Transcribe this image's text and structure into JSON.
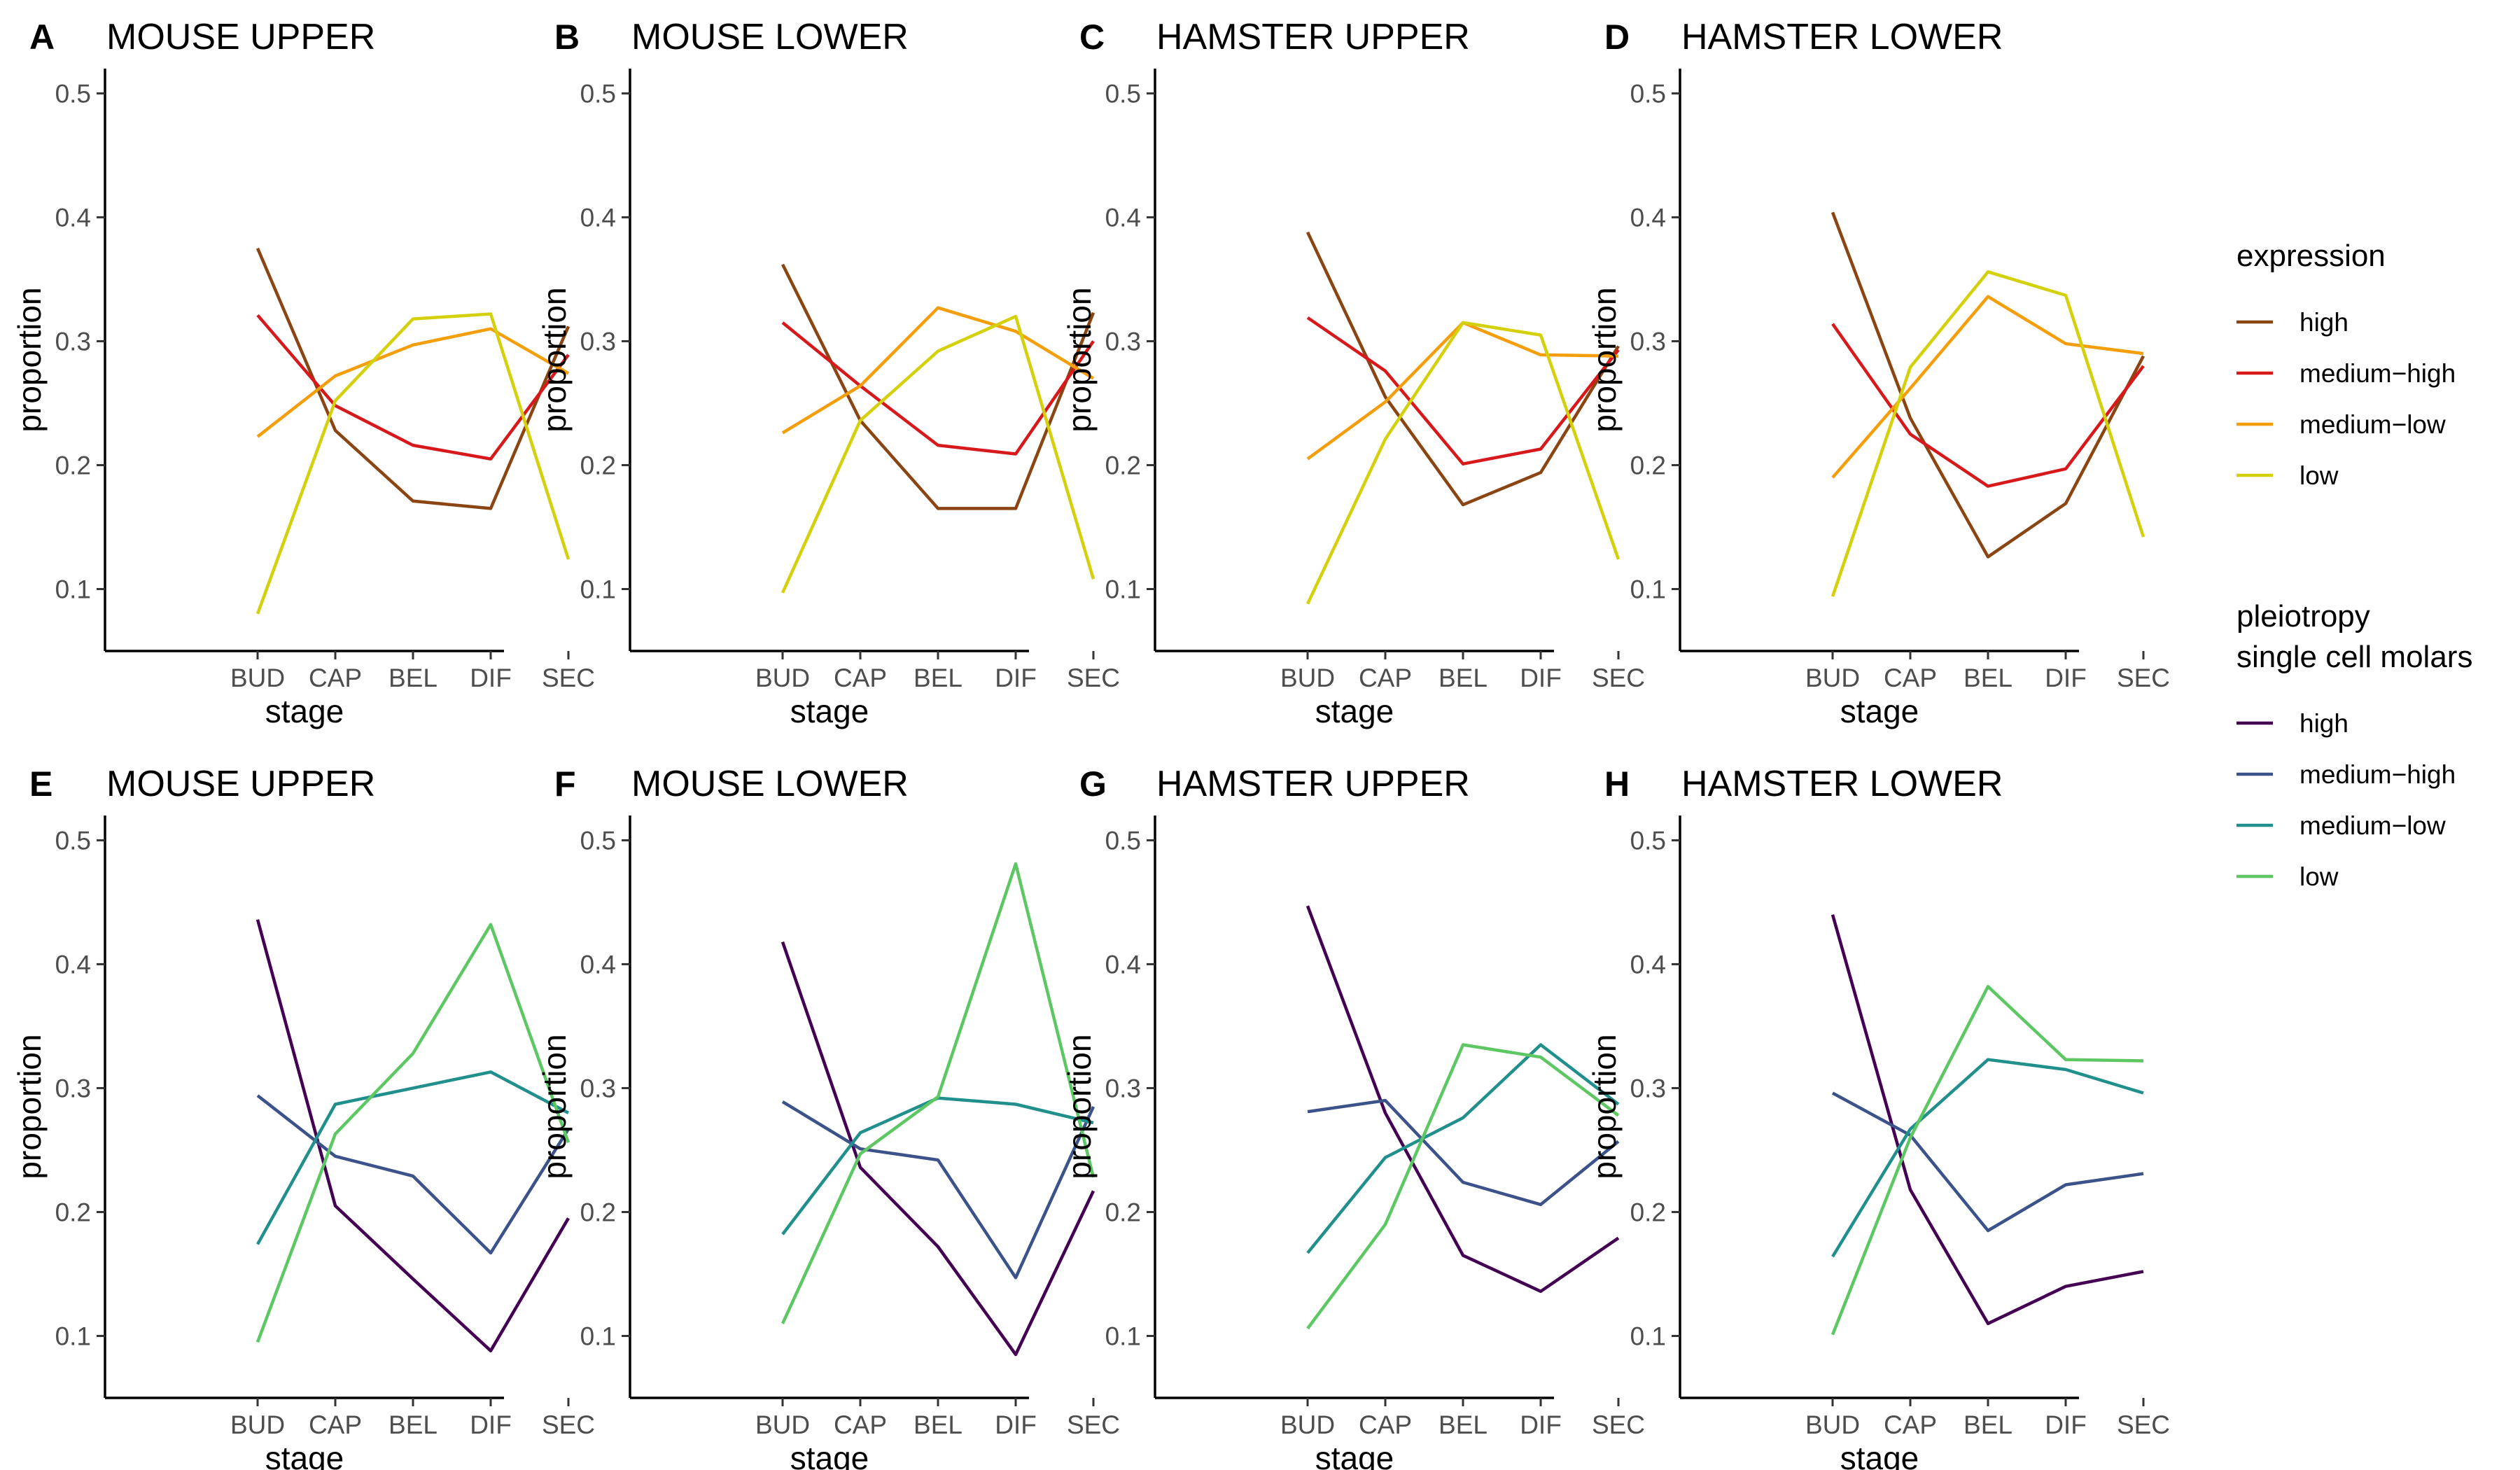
{
  "chart_data": [
    {
      "panel": "A",
      "title": "MOUSE UPPER",
      "type": "line",
      "xlabel": "stage",
      "ylabel": "proportion",
      "categories": [
        "BUD",
        "CAP",
        "BEL",
        "DIF",
        "SEC"
      ],
      "yticks": [
        "0.1",
        "0.2",
        "0.3",
        "0.4",
        "0.5"
      ],
      "ylim": [
        0.05,
        0.52
      ],
      "legend_group": "expression",
      "series": [
        {
          "name": "high",
          "color": "#8B4513",
          "values": [
            0.375,
            0.228,
            0.171,
            0.165,
            0.312
          ]
        },
        {
          "name": "medium−high",
          "color": "#D7191C",
          "values": [
            0.321,
            0.248,
            0.216,
            0.205,
            0.289
          ]
        },
        {
          "name": "medium−low",
          "color": "#F59E0B",
          "values": [
            0.223,
            0.272,
            0.297,
            0.31,
            0.274
          ]
        },
        {
          "name": "low",
          "color": "#D4D10C",
          "values": [
            0.08,
            0.252,
            0.318,
            0.322,
            0.124
          ]
        }
      ]
    },
    {
      "panel": "B",
      "title": "MOUSE LOWER",
      "type": "line",
      "xlabel": "stage",
      "ylabel": "proportion",
      "categories": [
        "BUD",
        "CAP",
        "BEL",
        "DIF",
        "SEC"
      ],
      "yticks": [
        "0.1",
        "0.2",
        "0.3",
        "0.4",
        "0.5"
      ],
      "ylim": [
        0.05,
        0.52
      ],
      "legend_group": "expression",
      "series": [
        {
          "name": "high",
          "color": "#8B4513",
          "values": [
            0.362,
            0.236,
            0.165,
            0.165,
            0.323
          ]
        },
        {
          "name": "medium−high",
          "color": "#D7191C",
          "values": [
            0.315,
            0.264,
            0.216,
            0.209,
            0.3
          ]
        },
        {
          "name": "medium−low",
          "color": "#F59E0B",
          "values": [
            0.226,
            0.264,
            0.327,
            0.308,
            0.27
          ]
        },
        {
          "name": "low",
          "color": "#D4D10C",
          "values": [
            0.097,
            0.236,
            0.292,
            0.32,
            0.108
          ]
        }
      ]
    },
    {
      "panel": "C",
      "title": "HAMSTER UPPER",
      "type": "line",
      "xlabel": "stage",
      "ylabel": "proportion",
      "categories": [
        "BUD",
        "CAP",
        "BEL",
        "DIF",
        "SEC"
      ],
      "yticks": [
        "0.1",
        "0.2",
        "0.3",
        "0.4",
        "0.5"
      ],
      "ylim": [
        0.05,
        0.52
      ],
      "legend_group": "expression",
      "series": [
        {
          "name": "high",
          "color": "#8B4513",
          "values": [
            0.388,
            0.255,
            0.168,
            0.194,
            0.296
          ]
        },
        {
          "name": "medium−high",
          "color": "#D7191C",
          "values": [
            0.319,
            0.276,
            0.201,
            0.213,
            0.293
          ]
        },
        {
          "name": "medium−low",
          "color": "#F59E0B",
          "values": [
            0.205,
            0.251,
            0.315,
            0.289,
            0.288
          ]
        },
        {
          "name": "low",
          "color": "#D4D10C",
          "values": [
            0.088,
            0.221,
            0.315,
            0.305,
            0.124
          ]
        }
      ]
    },
    {
      "panel": "D",
      "title": "HAMSTER LOWER",
      "type": "line",
      "xlabel": "stage",
      "ylabel": "proportion",
      "categories": [
        "BUD",
        "CAP",
        "BEL",
        "DIF",
        "SEC"
      ],
      "yticks": [
        "0.1",
        "0.2",
        "0.3",
        "0.4",
        "0.5"
      ],
      "ylim": [
        0.05,
        0.52
      ],
      "legend_group": "expression",
      "series": [
        {
          "name": "high",
          "color": "#8B4513",
          "values": [
            0.404,
            0.238,
            0.126,
            0.169,
            0.288
          ]
        },
        {
          "name": "medium−high",
          "color": "#D7191C",
          "values": [
            0.314,
            0.225,
            0.183,
            0.197,
            0.28
          ]
        },
        {
          "name": "medium−low",
          "color": "#F59E0B",
          "values": [
            0.19,
            0.262,
            0.336,
            0.298,
            0.29
          ]
        },
        {
          "name": "low",
          "color": "#D4D10C",
          "values": [
            0.094,
            0.279,
            0.356,
            0.337,
            0.142
          ]
        }
      ]
    },
    {
      "panel": "E",
      "title": "MOUSE UPPER",
      "type": "line",
      "xlabel": "stage",
      "ylabel": "proportion",
      "categories": [
        "BUD",
        "CAP",
        "BEL",
        "DIF",
        "SEC"
      ],
      "yticks": [
        "0.1",
        "0.2",
        "0.3",
        "0.4",
        "0.5"
      ],
      "ylim": [
        0.05,
        0.52
      ],
      "legend_group": "pleiotropy",
      "series": [
        {
          "name": "high",
          "color": "#440154",
          "values": [
            0.436,
            0.205,
            0.146,
            0.088,
            0.195
          ]
        },
        {
          "name": "medium−high",
          "color": "#3B528B",
          "values": [
            0.294,
            0.245,
            0.229,
            0.167,
            0.267
          ]
        },
        {
          "name": "medium−low",
          "color": "#21908C",
          "values": [
            0.174,
            0.287,
            0.3,
            0.313,
            0.28
          ]
        },
        {
          "name": "low",
          "color": "#5DC863",
          "values": [
            0.095,
            0.263,
            0.328,
            0.432,
            0.256
          ]
        }
      ]
    },
    {
      "panel": "F",
      "title": "MOUSE LOWER",
      "type": "line",
      "xlabel": "stage",
      "ylabel": "proportion",
      "categories": [
        "BUD",
        "CAP",
        "BEL",
        "DIF",
        "SEC"
      ],
      "yticks": [
        "0.1",
        "0.2",
        "0.3",
        "0.4",
        "0.5"
      ],
      "ylim": [
        0.05,
        0.52
      ],
      "legend_group": "pleiotropy",
      "series": [
        {
          "name": "high",
          "color": "#440154",
          "values": [
            0.418,
            0.236,
            0.172,
            0.085,
            0.217
          ]
        },
        {
          "name": "medium−high",
          "color": "#3B528B",
          "values": [
            0.289,
            0.251,
            0.242,
            0.147,
            0.285
          ]
        },
        {
          "name": "medium−low",
          "color": "#21908C",
          "values": [
            0.182,
            0.264,
            0.292,
            0.287,
            0.272
          ]
        },
        {
          "name": "low",
          "color": "#5DC863",
          "values": [
            0.11,
            0.247,
            0.293,
            0.481,
            0.228
          ]
        }
      ]
    },
    {
      "panel": "G",
      "title": "HAMSTER UPPER",
      "type": "line",
      "xlabel": "stage",
      "ylabel": "proportion",
      "categories": [
        "BUD",
        "CAP",
        "BEL",
        "DIF",
        "SEC"
      ],
      "yticks": [
        "0.1",
        "0.2",
        "0.3",
        "0.4",
        "0.5"
      ],
      "ylim": [
        0.05,
        0.52
      ],
      "legend_group": "pleiotropy",
      "series": [
        {
          "name": "high",
          "color": "#440154",
          "values": [
            0.447,
            0.28,
            0.165,
            0.136,
            0.179
          ]
        },
        {
          "name": "medium−high",
          "color": "#3B528B",
          "values": [
            0.281,
            0.29,
            0.224,
            0.206,
            0.257
          ]
        },
        {
          "name": "medium−low",
          "color": "#21908C",
          "values": [
            0.167,
            0.244,
            0.276,
            0.335,
            0.287
          ]
        },
        {
          "name": "low",
          "color": "#5DC863",
          "values": [
            0.106,
            0.19,
            0.335,
            0.325,
            0.278
          ]
        }
      ]
    },
    {
      "panel": "H",
      "title": "HAMSTER LOWER",
      "type": "line",
      "xlabel": "stage",
      "ylabel": "proportion",
      "categories": [
        "BUD",
        "CAP",
        "BEL",
        "DIF",
        "SEC"
      ],
      "yticks": [
        "0.1",
        "0.2",
        "0.3",
        "0.4",
        "0.5"
      ],
      "ylim": [
        0.05,
        0.52
      ],
      "legend_group": "pleiotropy",
      "series": [
        {
          "name": "high",
          "color": "#440154",
          "values": [
            0.44,
            0.218,
            0.11,
            0.14,
            0.152
          ]
        },
        {
          "name": "medium−high",
          "color": "#3B528B",
          "values": [
            0.296,
            0.262,
            0.185,
            0.222,
            0.231
          ]
        },
        {
          "name": "medium−low",
          "color": "#21908C",
          "values": [
            0.164,
            0.267,
            0.323,
            0.315,
            0.296
          ]
        },
        {
          "name": "low",
          "color": "#5DC863",
          "values": [
            0.101,
            0.26,
            0.382,
            0.323,
            0.322
          ]
        }
      ]
    }
  ],
  "legends": [
    {
      "id": "expression",
      "title_lines": [
        "expression"
      ],
      "items": [
        {
          "label": "high",
          "color": "#8B4513"
        },
        {
          "label": "medium−high",
          "color": "#D7191C"
        },
        {
          "label": "medium−low",
          "color": "#F59E0B"
        },
        {
          "label": "low",
          "color": "#D4D10C"
        }
      ]
    },
    {
      "id": "pleiotropy",
      "title_lines": [
        "pleiotropy",
        "single cell molars"
      ],
      "items": [
        {
          "label": "high",
          "color": "#440154"
        },
        {
          "label": "medium−high",
          "color": "#3B528B"
        },
        {
          "label": "medium−low",
          "color": "#21908C"
        },
        {
          "label": "low",
          "color": "#5DC863"
        }
      ]
    }
  ]
}
